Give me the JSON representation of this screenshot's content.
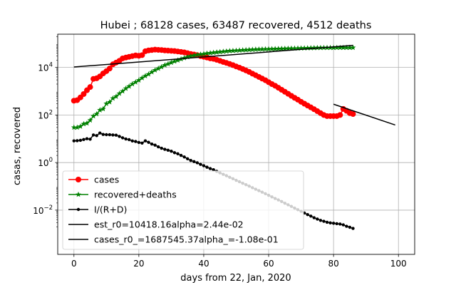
{
  "chart_data": {
    "type": "line",
    "title": "Hubei ; 68128 cases, 63487 recovered, 4512 deaths",
    "xlabel": "days from 22, Jan, 2020",
    "ylabel": "casas, recovered",
    "xlim": [
      -5,
      105
    ],
    "ylim": [
      0.000138,
      250000
    ],
    "yscale": "log",
    "grid": true,
    "legend_position": "lower-left",
    "x_ticks": [
      {
        "value": 0,
        "label": "0"
      },
      {
        "value": 20,
        "label": "20"
      },
      {
        "value": 40,
        "label": "40"
      },
      {
        "value": 60,
        "label": "60"
      },
      {
        "value": 80,
        "label": "80"
      },
      {
        "value": 100,
        "label": "100"
      }
    ],
    "y_ticks": [
      {
        "value": 0.01,
        "base": "10",
        "exp": "−2"
      },
      {
        "value": 1,
        "base": "10",
        "exp": "0"
      },
      {
        "value": 100,
        "base": "10",
        "exp": "2"
      },
      {
        "value": 10000,
        "base": "10",
        "exp": "4"
      }
    ],
    "series": [
      {
        "name": "cases",
        "color": "#ff0000",
        "marker": "circle",
        "x": [
          0,
          1,
          2,
          3,
          4,
          5,
          6,
          7,
          8,
          9,
          10,
          11,
          12,
          13,
          14,
          15,
          16,
          17,
          18,
          19,
          20,
          21,
          22,
          23,
          24,
          25,
          26,
          27,
          28,
          29,
          30,
          31,
          32,
          33,
          34,
          35,
          36,
          37,
          38,
          39,
          40,
          41,
          42,
          43,
          44,
          45,
          46,
          47,
          48,
          49,
          50,
          51,
          52,
          53,
          54,
          55,
          56,
          57,
          58,
          59,
          60,
          61,
          62,
          63,
          64,
          65,
          66,
          67,
          68,
          69,
          70,
          71,
          72,
          73,
          74,
          75,
          76,
          77,
          78,
          79,
          80,
          81,
          82,
          83,
          84,
          85,
          86
        ],
        "y": [
          400,
          420,
          550,
          760,
          1100,
          1500,
          3300,
          3500,
          4200,
          5600,
          7000,
          9000,
          13500,
          16000,
          19000,
          24000,
          26000,
          28000,
          30000,
          32000,
          31000,
          33000,
          48000,
          52000,
          54000,
          56000,
          55000,
          54000,
          52000,
          51000,
          50000,
          49000,
          47000,
          45000,
          43000,
          40000,
          37000,
          35000,
          33000,
          30000,
          28000,
          26000,
          24000,
          23000,
          21000,
          19000,
          17000,
          15500,
          14000,
          12500,
          11000,
          9800,
          8600,
          7500,
          6500,
          5500,
          4700,
          4000,
          3400,
          2900,
          2400,
          2000,
          1700,
          1400,
          1150,
          950,
          780,
          640,
          530,
          440,
          360,
          300,
          250,
          210,
          175,
          145,
          120,
          100,
          90,
          90,
          90,
          90,
          100,
          180,
          150,
          120,
          110
        ]
      },
      {
        "name": "recovered+deaths",
        "color": "#008000",
        "marker": "star",
        "x": [
          0,
          1,
          2,
          3,
          4,
          5,
          6,
          7,
          8,
          9,
          10,
          11,
          12,
          13,
          14,
          15,
          16,
          17,
          18,
          19,
          20,
          21,
          22,
          23,
          24,
          25,
          26,
          27,
          28,
          29,
          30,
          31,
          32,
          33,
          34,
          35,
          36,
          37,
          38,
          39,
          40,
          41,
          42,
          43,
          44,
          45,
          46,
          47,
          48,
          49,
          50,
          51,
          52,
          53,
          54,
          55,
          56,
          57,
          58,
          59,
          60,
          61,
          62,
          63,
          64,
          65,
          66,
          67,
          68,
          69,
          70,
          71,
          72,
          73,
          74,
          75,
          76,
          77,
          78,
          79,
          80,
          81,
          82,
          83,
          84,
          85,
          86
        ],
        "y": [
          30,
          30,
          33,
          42,
          45,
          60,
          90,
          110,
          160,
          180,
          300,
          350,
          500,
          600,
          800,
          1000,
          1300,
          1600,
          2000,
          2400,
          2900,
          3600,
          4400,
          5200,
          6400,
          7700,
          9000,
          10500,
          12500,
          14000,
          16000,
          18000,
          20000,
          22500,
          25000,
          27500,
          30000,
          32000,
          34000,
          35500,
          37000,
          39000,
          40500,
          42000,
          43500,
          45000,
          46500,
          48000,
          49500,
          50500,
          51500,
          52500,
          53500,
          54500,
          55500,
          56500,
          57500,
          58000,
          58500,
          59000,
          59500,
          60000,
          60500,
          61000,
          61500,
          62000,
          62500,
          63000,
          63500,
          64000,
          64500,
          65000,
          65500,
          66000,
          66500,
          67000,
          67200,
          67400,
          67500,
          67600,
          67700,
          67800,
          67900,
          67950,
          68000,
          68050,
          68100
        ]
      },
      {
        "name": "I/(R+D)",
        "color": "#000000",
        "marker": "dot",
        "x": [
          0,
          1,
          2,
          3,
          4,
          5,
          6,
          7,
          8,
          9,
          10,
          11,
          12,
          13,
          14,
          15,
          16,
          17,
          18,
          19,
          20,
          21,
          22,
          23,
          24,
          25,
          26,
          27,
          28,
          29,
          30,
          31,
          32,
          33,
          34,
          35,
          36,
          37,
          38,
          39,
          40,
          41,
          42,
          43,
          44,
          45,
          46,
          47,
          48,
          49,
          50,
          51,
          52,
          53,
          54,
          55,
          56,
          57,
          58,
          59,
          60,
          61,
          62,
          63,
          64,
          65,
          66,
          67,
          68,
          69,
          70,
          71,
          72,
          73,
          74,
          75,
          76,
          77,
          78,
          79,
          80,
          81,
          82,
          83,
          84,
          85,
          86
        ],
        "y": [
          8.2,
          8.3,
          8.6,
          9.3,
          10.1,
          9.6,
          14.5,
          13.6,
          17.5,
          15.2,
          14.9,
          14.8,
          14.5,
          14.2,
          12.6,
          11.0,
          9.8,
          9.2,
          8.1,
          7.7,
          7.0,
          6.6,
          8.2,
          7.1,
          6.0,
          5.4,
          4.6,
          4.0,
          3.6,
          3.3,
          3.0,
          2.6,
          2.35,
          2.0,
          1.72,
          1.45,
          1.23,
          1.1,
          0.98,
          0.84,
          0.74,
          0.64,
          0.56,
          0.5,
          0.43,
          0.37,
          0.32,
          0.28,
          0.24,
          0.21,
          0.18,
          0.156,
          0.135,
          0.118,
          0.102,
          0.088,
          0.076,
          0.066,
          0.057,
          0.049,
          0.042,
          0.036,
          0.031,
          0.027,
          0.023,
          0.0195,
          0.0167,
          0.0143,
          0.0122,
          0.0104,
          0.0089,
          0.0076,
          0.0065,
          0.0056,
          0.0048,
          0.0042,
          0.0037,
          0.0034,
          0.0031,
          0.0029,
          0.0028,
          0.0027,
          0.0026,
          0.0024,
          0.0021,
          0.0019,
          0.0017
        ]
      },
      {
        "name": "est_r0=10418.16alpha=2.44e-02",
        "color": "#000000",
        "marker": "none",
        "x": [
          0,
          86
        ],
        "y": [
          10418.16,
          85000
        ]
      },
      {
        "name": "cases_r0_=1687545.37alpha_=-1.08e-01",
        "color": "#000000",
        "marker": "none",
        "x": [
          80,
          99
        ],
        "y": [
          285,
          38
        ]
      }
    ]
  }
}
